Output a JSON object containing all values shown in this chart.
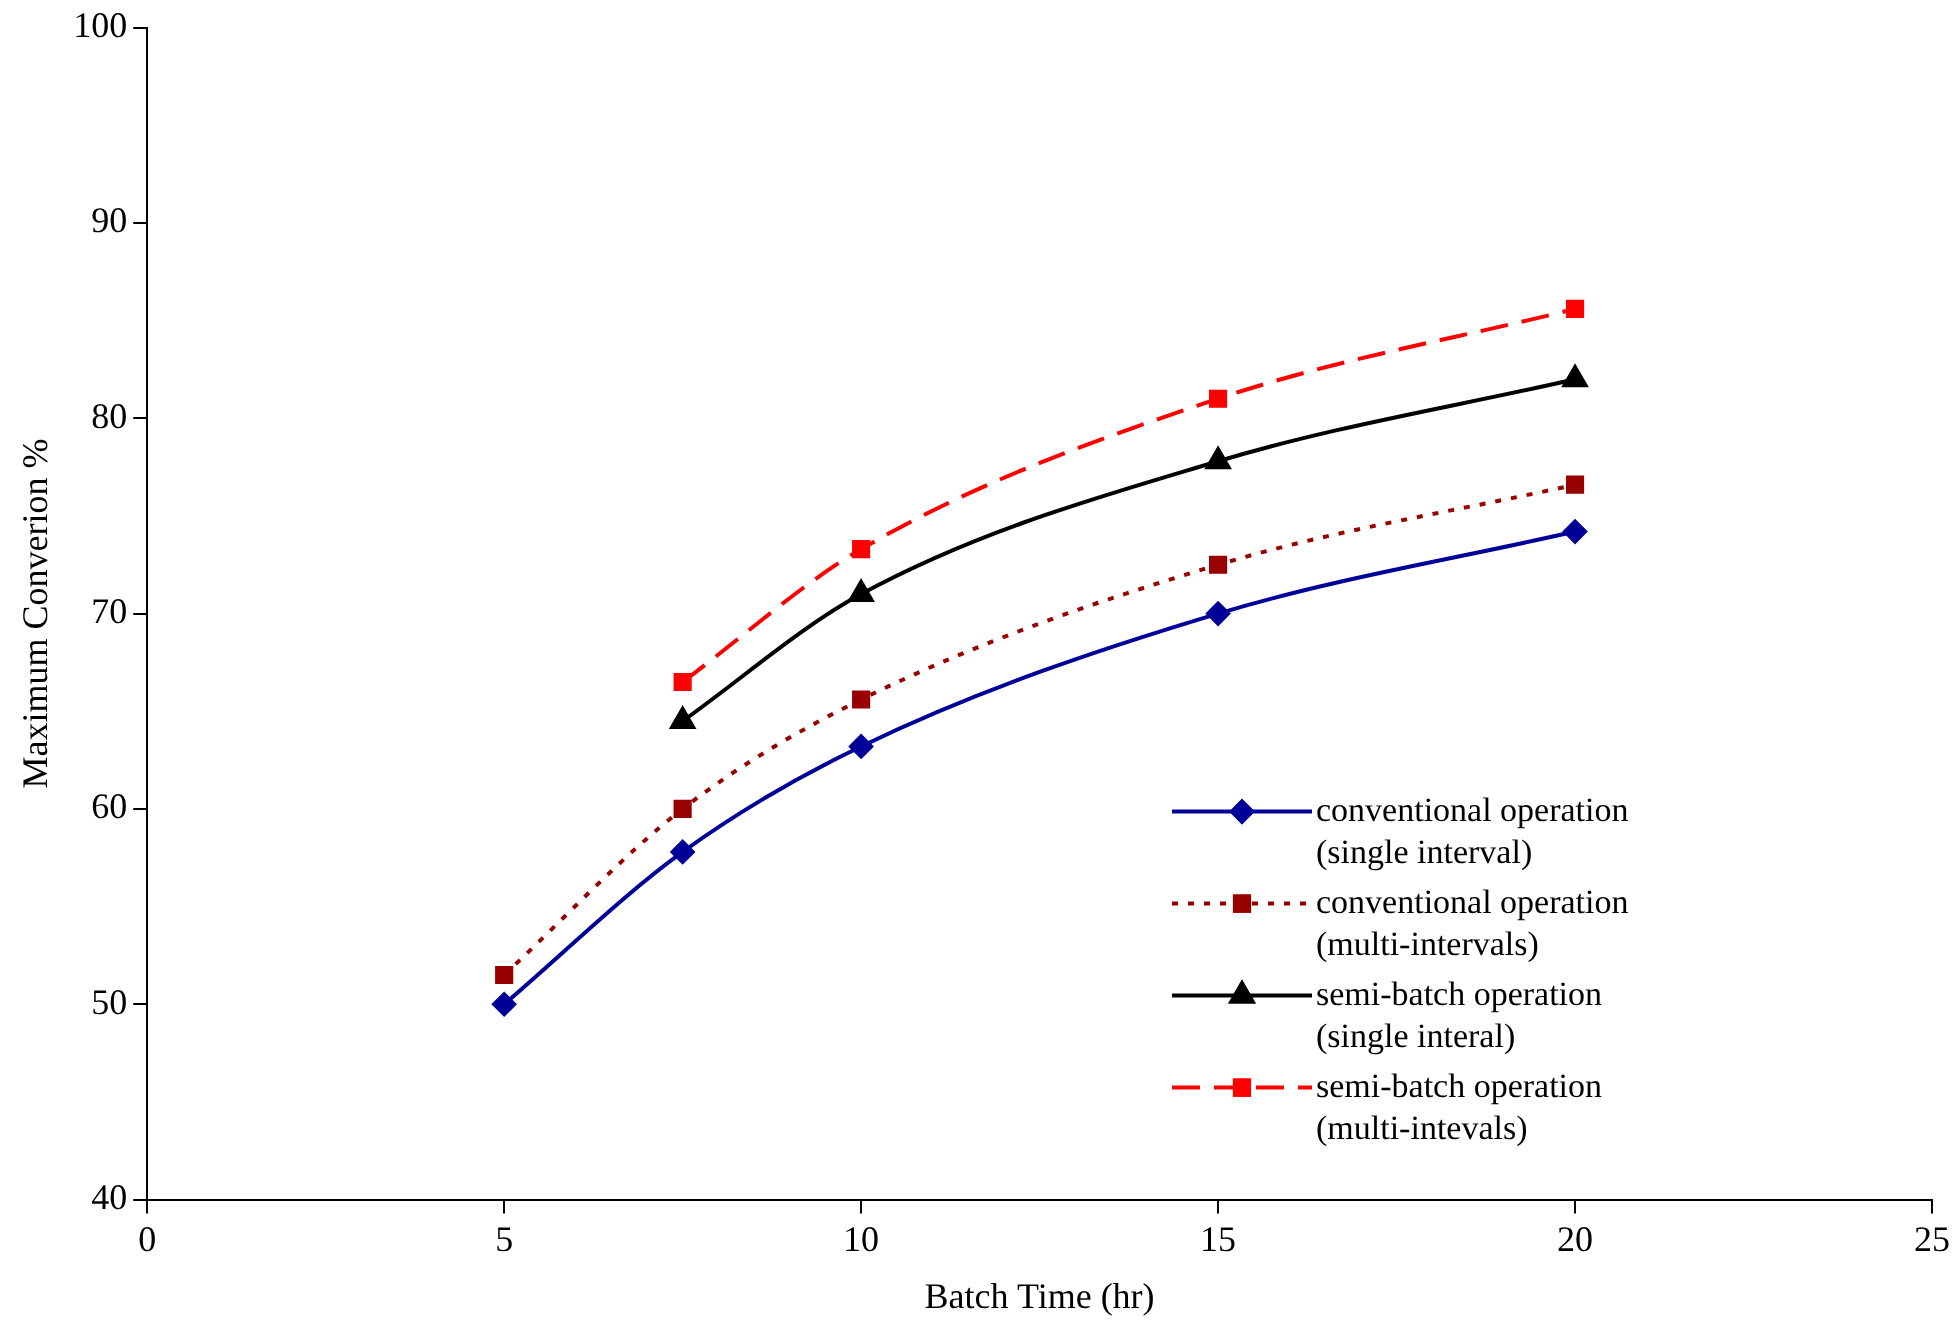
{
  "chart_data": {
    "type": "line",
    "xlabel": "Batch Time (hr)",
    "ylabel": "Maximum Converion %",
    "xlim": [
      0,
      25
    ],
    "xticks": [
      0,
      5,
      10,
      15,
      20,
      25
    ],
    "ylim": [
      40,
      100
    ],
    "yticks": [
      40,
      50,
      60,
      70,
      80,
      90,
      100
    ],
    "grid": false,
    "legend": "bottom right",
    "series": [
      {
        "name": "conventional operation (single interval)",
        "color": "#000099",
        "x": [
          5,
          7.5,
          10,
          15,
          20
        ],
        "values": [
          50,
          57.8,
          63.2,
          70,
          74.2
        ],
        "marker": "diamond",
        "line_style": "solid"
      },
      {
        "name": "conventional operation (multi-intervals)",
        "color": "#990000",
        "x": [
          5,
          7.5,
          10,
          15,
          20
        ],
        "values": [
          51.5,
          60,
          65.6,
          72.5,
          76.6
        ],
        "marker": "square",
        "line_style": "dotted"
      },
      {
        "name": "semi-batch operation (single interal)",
        "color": "#000000",
        "x": [
          7.5,
          10,
          15,
          20
        ],
        "values": [
          64.5,
          71,
          77.8,
          82
        ],
        "marker": "triangle",
        "line_style": "solid"
      },
      {
        "name": "semi-batch operation (multi-intevals)",
        "color": "#ff0000",
        "x": [
          7.5,
          10,
          15,
          20
        ],
        "values": [
          66.5,
          73.3,
          81,
          85.6
        ],
        "marker": "square",
        "line_style": "dashed"
      }
    ]
  }
}
